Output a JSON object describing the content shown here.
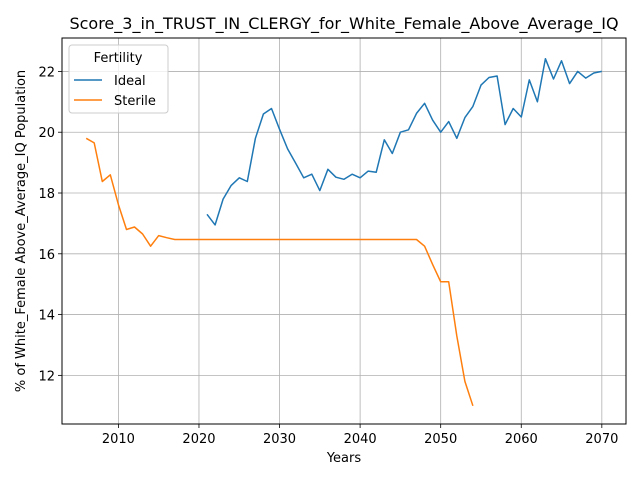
{
  "chart_data": {
    "type": "line",
    "title": "Score_3_in_TRUST_IN_CLERGY_for_White_Female_Above_Average_IQ",
    "xlabel": "Years",
    "ylabel": "% of White_Female Above_Average_IQ Population",
    "xlim": [
      2003,
      2073
    ],
    "ylim": [
      10.4,
      23.1
    ],
    "xticks": [
      2010,
      2020,
      2030,
      2040,
      2050,
      2060,
      2070
    ],
    "yticks": [
      12,
      14,
      16,
      18,
      20,
      22
    ],
    "grid": true,
    "legend": {
      "title": "Fertility",
      "placement": "upper-left"
    },
    "series": [
      {
        "name": "Ideal",
        "color": "#1f77b4",
        "x": [
          2021,
          2022,
          2023,
          2024,
          2025,
          2026,
          2027,
          2028,
          2029,
          2030,
          2031,
          2032,
          2033,
          2034,
          2035,
          2036,
          2037,
          2038,
          2039,
          2040,
          2041,
          2042,
          2043,
          2044,
          2045,
          2046,
          2047,
          2048,
          2049,
          2050,
          2051,
          2052,
          2053,
          2054,
          2055,
          2056,
          2057,
          2058,
          2059,
          2060,
          2061,
          2062,
          2063,
          2064,
          2065,
          2066,
          2067,
          2068,
          2069,
          2070
        ],
        "y": [
          17.3,
          16.95,
          17.8,
          18.25,
          18.5,
          18.38,
          19.8,
          20.6,
          20.78,
          20.1,
          19.45,
          18.98,
          18.5,
          18.62,
          18.08,
          18.78,
          18.52,
          18.45,
          18.62,
          18.5,
          18.72,
          18.68,
          19.75,
          19.3,
          20.0,
          20.08,
          20.62,
          20.95,
          20.4,
          20.0,
          20.35,
          19.8,
          20.48,
          20.85,
          21.55,
          21.8,
          21.85,
          20.25,
          20.78,
          20.5,
          21.72,
          21.0,
          22.42,
          21.75,
          22.35,
          21.6,
          22.0,
          21.78,
          21.95,
          22.0
        ]
      },
      {
        "name": "Sterile",
        "color": "#ff7f0e",
        "x": [
          2006,
          2007,
          2008,
          2009,
          2010,
          2011,
          2012,
          2013,
          2014,
          2015,
          2016,
          2017,
          2018,
          2019,
          2020,
          2021,
          2022,
          2023,
          2024,
          2025,
          2026,
          2027,
          2028,
          2029,
          2030,
          2031,
          2032,
          2033,
          2034,
          2035,
          2036,
          2037,
          2038,
          2039,
          2040,
          2041,
          2042,
          2043,
          2044,
          2045,
          2046,
          2047,
          2048,
          2049,
          2050,
          2051,
          2052,
          2053,
          2054
        ],
        "y": [
          19.8,
          19.65,
          18.38,
          18.6,
          17.62,
          16.8,
          16.88,
          16.65,
          16.25,
          16.6,
          16.53,
          16.47,
          16.47,
          16.47,
          16.47,
          16.47,
          16.47,
          16.47,
          16.47,
          16.47,
          16.47,
          16.47,
          16.47,
          16.47,
          16.47,
          16.47,
          16.47,
          16.47,
          16.47,
          16.47,
          16.47,
          16.47,
          16.47,
          16.47,
          16.47,
          16.47,
          16.47,
          16.47,
          16.47,
          16.47,
          16.47,
          16.47,
          16.25,
          15.65,
          15.08,
          15.08,
          13.3,
          11.8,
          11.0
        ]
      }
    ]
  }
}
